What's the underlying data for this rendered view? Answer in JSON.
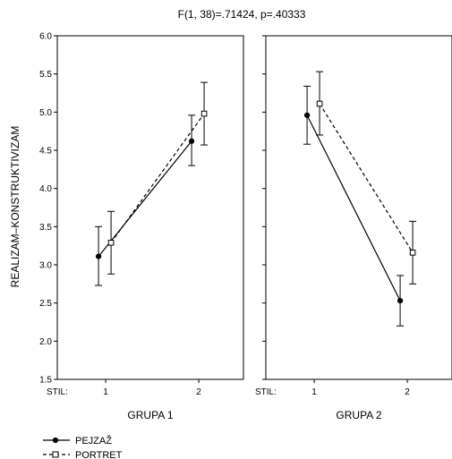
{
  "chart_data": {
    "type": "line",
    "title": "F(1, 38)=.71424, p=.40333",
    "ylabel": "REALIZAM–KONSTRUKTIVIZAM",
    "ylim": [
      1.5,
      6.0
    ],
    "yticks": [
      "1.5",
      "2.0",
      "2.5",
      "3.0",
      "3.5",
      "4.0",
      "4.5",
      "5.0",
      "5.5",
      "6.0"
    ],
    "grid": false,
    "error_bars": true,
    "x_axis_label": "STIL:",
    "categories": [
      "1",
      "2"
    ],
    "legend_position": "bottom-left",
    "panels": [
      {
        "label": "GRUPA 1",
        "series": [
          {
            "name": "PEJZAŽ",
            "values": [
              3.11,
              4.62
            ],
            "lower": [
              2.73,
              4.3
            ],
            "upper": [
              3.5,
              4.96
            ]
          },
          {
            "name": "PORTRET",
            "values": [
              3.29,
              4.98
            ],
            "lower": [
              2.88,
              4.57
            ],
            "upper": [
              3.7,
              5.39
            ]
          }
        ]
      },
      {
        "label": "GRUPA 2",
        "series": [
          {
            "name": "PEJZAŽ",
            "values": [
              4.96,
              2.53
            ],
            "lower": [
              4.58,
              2.2
            ],
            "upper": [
              5.34,
              2.86
            ]
          },
          {
            "name": "PORTRET",
            "values": [
              5.11,
              3.16
            ],
            "lower": [
              4.7,
              2.75
            ],
            "upper": [
              5.53,
              3.57
            ]
          }
        ]
      }
    ],
    "series_styles": [
      {
        "name": "PEJZAŽ",
        "marker": "filled-circle",
        "dash": "solid",
        "color": "#000000"
      },
      {
        "name": "PORTRET",
        "marker": "open-square",
        "dash": "dashed",
        "color": "#000000"
      }
    ]
  }
}
